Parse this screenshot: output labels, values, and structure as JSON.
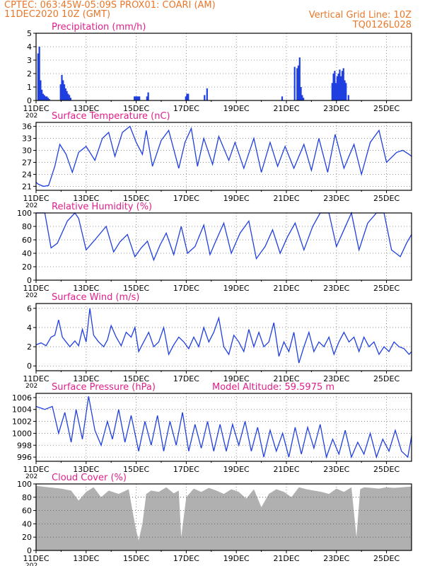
{
  "header": {
    "line1": "CPTEC:   063:45W-05:09S   PROX01: COARI (AM)",
    "line2": "11DEC2020 10Z (GMT)",
    "right1": "Vertical Grid Line: 10Z",
    "right2": "TQ0126L028"
  },
  "colors": {
    "header": "#e8782a",
    "title": "#e0208a",
    "line": "#1f3fe0",
    "bar": "#1f3fe0",
    "cloud": "#b0b0b0"
  },
  "x_axis": {
    "tick_labels": [
      "11DEC",
      "13DEC",
      "15DEC",
      "17DEC",
      "19DEC",
      "21DEC",
      "23DEC",
      "25DEC"
    ],
    "tick_positions_days": [
      0,
      2,
      4,
      6,
      8,
      10,
      12,
      14
    ],
    "range_days": [
      0,
      15
    ],
    "under_label": "202"
  },
  "chart_data": [
    {
      "type": "bar",
      "title": "Precipitation (mm/h)",
      "ylim": [
        0,
        5
      ],
      "yticks": [
        "0",
        "1",
        "2",
        "3",
        "4",
        "5"
      ],
      "x": [
        0.05,
        0.1,
        0.15,
        0.2,
        0.25,
        0.3,
        0.35,
        0.4,
        0.45,
        0.5,
        0.95,
        1.0,
        1.05,
        1.1,
        1.15,
        1.2,
        1.25,
        1.3,
        1.35,
        3.9,
        3.95,
        4.0,
        4.05,
        4.1,
        4.4,
        4.45,
        5.95,
        6.0,
        6.05,
        6.7,
        6.8,
        9.8,
        10.3,
        10.4,
        10.45,
        10.5,
        10.55,
        10.6,
        10.65,
        11.8,
        11.85,
        11.9,
        11.95,
        12.0,
        12.05,
        12.1,
        12.15,
        12.2,
        12.25,
        12.3,
        12.35,
        12.45
      ],
      "values": [
        3.5,
        4.0,
        1.5,
        0.8,
        0.5,
        0.4,
        0.3,
        0.3,
        0.2,
        0.1,
        1.2,
        1.9,
        1.5,
        1.2,
        0.9,
        0.7,
        0.5,
        0.4,
        0.2,
        0.3,
        0.3,
        0.3,
        0.3,
        0.3,
        0.3,
        0.6,
        0.3,
        0.5,
        0.5,
        0.4,
        0.9,
        0.3,
        2.5,
        2.4,
        2.6,
        3.2,
        1.0,
        0.4,
        0.2,
        1.3,
        2.0,
        2.2,
        1.3,
        1.8,
        2.0,
        2.3,
        1.8,
        2.2,
        2.4,
        1.5,
        1.3,
        0.4
      ]
    },
    {
      "type": "line",
      "title": "Surface Temperature (nC)",
      "ylim": [
        20,
        37
      ],
      "yticks": [
        "21",
        "24",
        "27",
        "30",
        "33",
        "36"
      ],
      "x": [
        0,
        0.1,
        0.3,
        0.5,
        0.75,
        0.95,
        1.2,
        1.45,
        1.7,
        2.0,
        2.35,
        2.65,
        2.9,
        3.15,
        3.45,
        3.75,
        4.0,
        4.25,
        4.4,
        4.65,
        5.0,
        5.3,
        5.7,
        5.95,
        6.2,
        6.45,
        6.7,
        7.05,
        7.3,
        7.7,
        7.95,
        8.3,
        8.7,
        9.0,
        9.35,
        9.65,
        9.95,
        10.3,
        10.7,
        11.0,
        11.3,
        11.65,
        11.95,
        12.3,
        12.7,
        13.0,
        13.35,
        13.7,
        14.0,
        14.4,
        14.65,
        14.9,
        15.0
      ],
      "values": [
        22.0,
        21.5,
        21.0,
        21.2,
        26.0,
        31.5,
        29.0,
        24.5,
        29.5,
        31.0,
        27.5,
        33.0,
        34.5,
        28.5,
        34.5,
        36.0,
        32.0,
        29.0,
        35.0,
        26.0,
        32.5,
        35.0,
        25.5,
        32.0,
        35.5,
        26.0,
        33.0,
        26.5,
        33.5,
        27.5,
        32.0,
        25.5,
        33.0,
        24.5,
        32.0,
        26.0,
        31.0,
        25.5,
        31.5,
        25.0,
        33.0,
        24.5,
        34.0,
        25.5,
        31.5,
        24.0,
        32.0,
        35.0,
        27.0,
        29.5,
        30.0,
        29.0,
        28.5
      ]
    },
    {
      "type": "line",
      "title": "Relative Humidity (%)",
      "ylim": [
        0,
        100
      ],
      "yticks": [
        "0",
        "20",
        "40",
        "60",
        "80",
        "100"
      ],
      "x": [
        0,
        0.35,
        0.6,
        0.85,
        1.25,
        1.55,
        1.7,
        2.0,
        2.35,
        2.8,
        3.1,
        3.35,
        3.65,
        3.95,
        4.2,
        4.45,
        4.7,
        4.95,
        5.2,
        5.5,
        5.8,
        6.05,
        6.35,
        6.7,
        6.95,
        7.2,
        7.5,
        7.8,
        8.15,
        8.5,
        8.8,
        9.15,
        9.45,
        9.75,
        10.05,
        10.35,
        10.7,
        11.05,
        11.35,
        11.7,
        12.0,
        12.3,
        12.6,
        12.9,
        13.25,
        13.6,
        13.9,
        14.2,
        14.55,
        14.8,
        15.0
      ],
      "values": [
        100,
        100,
        48,
        55,
        88,
        100,
        92,
        45,
        60,
        80,
        42,
        57,
        68,
        35,
        48,
        58,
        30,
        52,
        70,
        38,
        80,
        40,
        50,
        82,
        38,
        60,
        85,
        40,
        70,
        88,
        32,
        50,
        75,
        40,
        65,
        85,
        45,
        80,
        100,
        100,
        50,
        75,
        100,
        45,
        85,
        100,
        100,
        45,
        35,
        55,
        68
      ]
    },
    {
      "type": "line",
      "title": "Surface Wind (m/s)",
      "ylim": [
        -0.5,
        6.5
      ],
      "yticks": [
        "0",
        "2",
        "4",
        "6"
      ],
      "x": [
        0,
        0.2,
        0.4,
        0.6,
        0.75,
        0.9,
        1.05,
        1.2,
        1.35,
        1.55,
        1.7,
        1.85,
        2.0,
        2.15,
        2.3,
        2.5,
        2.7,
        2.85,
        3.0,
        3.2,
        3.4,
        3.6,
        3.8,
        3.95,
        4.1,
        4.3,
        4.5,
        4.7,
        4.9,
        5.1,
        5.3,
        5.5,
        5.7,
        5.9,
        6.1,
        6.3,
        6.5,
        6.7,
        6.9,
        7.1,
        7.3,
        7.5,
        7.7,
        7.9,
        8.1,
        8.3,
        8.5,
        8.7,
        8.9,
        9.1,
        9.3,
        9.5,
        9.7,
        9.9,
        10.1,
        10.3,
        10.5,
        10.7,
        10.9,
        11.1,
        11.3,
        11.5,
        11.7,
        11.9,
        12.1,
        12.3,
        12.5,
        12.7,
        12.9,
        13.1,
        13.3,
        13.5,
        13.7,
        13.9,
        14.1,
        14.3,
        14.5,
        14.7,
        14.9,
        15.0
      ],
      "values": [
        2.2,
        2.4,
        2.1,
        3.0,
        3.2,
        4.8,
        3.0,
        2.5,
        2.0,
        2.6,
        2.1,
        3.8,
        2.5,
        6.0,
        3.2,
        2.5,
        2.0,
        2.7,
        4.2,
        3.0,
        2.1,
        3.5,
        3.0,
        4.0,
        1.5,
        2.5,
        3.5,
        2.0,
        2.5,
        4.0,
        1.2,
        2.2,
        3.0,
        2.5,
        1.8,
        3.0,
        2.0,
        4.0,
        2.5,
        3.5,
        5.0,
        2.0,
        1.2,
        3.2,
        2.5,
        1.5,
        3.8,
        2.0,
        3.5,
        2.0,
        2.5,
        4.5,
        1.0,
        2.5,
        1.5,
        3.5,
        0.3,
        2.0,
        3.5,
        1.5,
        2.5,
        2.0,
        3.0,
        1.2,
        2.5,
        3.5,
        2.5,
        3.0,
        1.5,
        3.0,
        2.0,
        2.5,
        1.2,
        2.0,
        1.5,
        2.5,
        2.0,
        1.8,
        1.2,
        1.5
      ]
    },
    {
      "type": "line",
      "title": "Surface Pressure (hPa)",
      "subtitle": "Model Altitude: 59.5975 m",
      "ylim": [
        995.3,
        1006.7
      ],
      "yticks": [
        "996",
        "998",
        "1000",
        "1002",
        "1004",
        "1006"
      ],
      "x": [
        0,
        0.35,
        0.65,
        0.9,
        1.15,
        1.4,
        1.6,
        1.85,
        2.1,
        2.35,
        2.6,
        2.85,
        3.05,
        3.3,
        3.55,
        3.8,
        4.1,
        4.35,
        4.6,
        4.85,
        5.1,
        5.35,
        5.6,
        5.85,
        6.1,
        6.35,
        6.6,
        6.85,
        7.1,
        7.35,
        7.6,
        7.85,
        8.1,
        8.35,
        8.6,
        8.85,
        9.1,
        9.35,
        9.6,
        9.85,
        10.1,
        10.35,
        10.6,
        10.85,
        11.1,
        11.35,
        11.6,
        11.85,
        12.1,
        12.35,
        12.6,
        12.85,
        13.1,
        13.35,
        13.6,
        13.85,
        14.1,
        14.35,
        14.6,
        14.85,
        15.0
      ],
      "values": [
        1004.5,
        1004.0,
        1004.5,
        1000.0,
        1003.5,
        998.5,
        1004.0,
        999.0,
        1006.2,
        1000.5,
        998.0,
        1002.0,
        999.0,
        1004.0,
        998.5,
        1003.0,
        997.0,
        1002.0,
        998.0,
        1003.0,
        997.0,
        1002.0,
        998.0,
        1003.5,
        997.0,
        1001.5,
        997.5,
        1002.0,
        997.0,
        1001.5,
        997.0,
        1001.5,
        998.0,
        1002.0,
        997.0,
        1001.0,
        996.0,
        1000.5,
        997.0,
        1000.0,
        996.0,
        1001.0,
        996.5,
        1001.0,
        997.5,
        1001.5,
        996.0,
        999.0,
        996.5,
        1000.5,
        996.0,
        998.5,
        996.5,
        1000.0,
        996.0,
        999.0,
        997.0,
        1000.5,
        997.0,
        996.0,
        999.5
      ]
    },
    {
      "type": "area",
      "title": "Cloud Cover (%)",
      "ylim": [
        0,
        100
      ],
      "yticks": [
        "0",
        "20",
        "40",
        "60",
        "80",
        "100"
      ],
      "x": [
        0,
        0.5,
        1.0,
        1.4,
        1.7,
        2.0,
        2.3,
        2.6,
        2.9,
        3.3,
        3.7,
        3.85,
        4.0,
        4.1,
        4.25,
        4.4,
        4.6,
        4.9,
        5.2,
        5.5,
        5.7,
        5.8,
        6.0,
        6.3,
        6.6,
        6.9,
        7.2,
        7.5,
        7.8,
        8.1,
        8.4,
        8.7,
        9.0,
        9.3,
        9.6,
        9.9,
        10.2,
        10.5,
        10.8,
        11.1,
        11.4,
        11.7,
        12.0,
        12.3,
        12.6,
        12.8,
        12.95,
        13.1,
        13.4,
        13.7,
        14.0,
        14.3,
        14.6,
        15.0
      ],
      "values": [
        97,
        95,
        93,
        90,
        75,
        88,
        95,
        80,
        90,
        85,
        92,
        60,
        30,
        15,
        40,
        85,
        90,
        88,
        95,
        86,
        90,
        20,
        80,
        93,
        88,
        94,
        90,
        85,
        92,
        88,
        78,
        92,
        65,
        85,
        92,
        88,
        80,
        95,
        92,
        90,
        88,
        85,
        93,
        88,
        95,
        20,
        92,
        95,
        94,
        93,
        95,
        94,
        95,
        96
      ]
    }
  ]
}
